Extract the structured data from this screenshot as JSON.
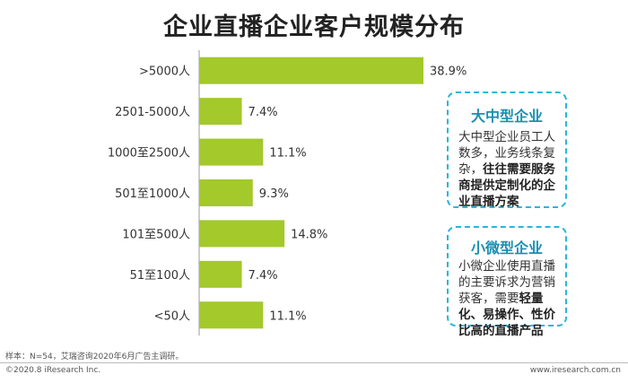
{
  "title": "企业直播企业客户规模分布",
  "chart_data": {
    "type": "bar",
    "orientation": "horizontal",
    "categories": [
      ">5000人",
      "2501-5000人",
      "1000至2500人",
      "501至1000人",
      "101至500人",
      "51至100人",
      "<50人"
    ],
    "values": [
      38.9,
      7.4,
      11.1,
      9.3,
      14.8,
      7.4,
      11.1
    ],
    "value_labels": [
      "38.9%",
      "7.4%",
      "11.1%",
      "9.3%",
      "14.8%",
      "7.4%",
      "11.1%"
    ],
    "unit": "%",
    "bar_color": "#a3c92b",
    "axis_color": "#999999",
    "grid": false,
    "xlim": [
      0,
      40
    ]
  },
  "cards": {
    "large": {
      "title": "大中型企业",
      "text_plain": "大中型企业员工人数多，业务线条复杂，",
      "text_bold": "往往需要服务商提供定制化的企业直播方案"
    },
    "small": {
      "title": "小微型企业",
      "text_plain": "小微企业使用直播的主要诉求为营销获客，需要",
      "text_bold": "轻量化、易操作、性价比高的直播产品"
    }
  },
  "footer": {
    "source": "样本：N=54，艾瑞咨询2020年6月广告主调研。",
    "copyright": "©2020.8 iResearch Inc.",
    "website": "www.iresearch.com.cn"
  }
}
